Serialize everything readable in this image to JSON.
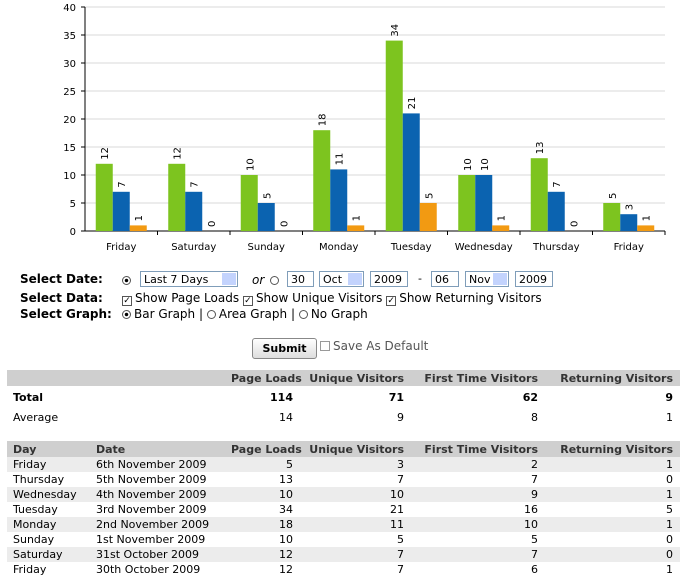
{
  "chart_data": {
    "type": "bar",
    "categories": [
      "Friday",
      "Saturday",
      "Sunday",
      "Monday",
      "Tuesday",
      "Wednesday",
      "Thursday",
      "Friday"
    ],
    "series": [
      {
        "color": "#7dc41f",
        "values": [
          12,
          12,
          10,
          18,
          34,
          10,
          13,
          5
        ]
      },
      {
        "color": "#0b63b0",
        "values": [
          7,
          7,
          5,
          11,
          21,
          10,
          7,
          3
        ]
      },
      {
        "color": "#f29a12",
        "values": [
          1,
          0,
          0,
          1,
          5,
          1,
          0,
          1
        ]
      }
    ],
    "ylim": [
      0,
      40
    ],
    "yticks": [
      0,
      5,
      10,
      15,
      20,
      25,
      30,
      35,
      40
    ],
    "grid": true
  },
  "form": {
    "date_label": "Select Date:",
    "range": "Last 7 Days",
    "or": "or",
    "from_day": "30",
    "from_month": "Oct",
    "from_year": "2009",
    "dash": "-",
    "to_day": "06",
    "to_month": "Nov",
    "to_year": "2009",
    "data_label": "Select Data:",
    "data_options": [
      "Show Page Loads",
      "Show Unique Visitors",
      "Show Returning Visitors"
    ],
    "graph_label": "Select Graph:",
    "graph_options": [
      "Bar Graph",
      "Area Graph",
      "No Graph"
    ],
    "separator": "|",
    "submit": "Submit",
    "save_default": "Save As Default"
  },
  "summary": {
    "columns": [
      "Page Loads",
      "Unique Visitors",
      "First Time Visitors",
      "Returning Visitors"
    ],
    "rows": [
      {
        "label": "Total",
        "values": [
          114,
          71,
          62,
          9
        ]
      },
      {
        "label": "Average",
        "values": [
          14,
          9,
          8,
          1
        ]
      }
    ]
  },
  "daily": {
    "columns": [
      "Day",
      "Date",
      "Page Loads",
      "Unique Visitors",
      "First Time Visitors",
      "Returning Visitors"
    ],
    "rows": [
      [
        "Friday",
        "6th November 2009",
        5,
        3,
        2,
        1
      ],
      [
        "Thursday",
        "5th November 2009",
        13,
        7,
        7,
        0
      ],
      [
        "Wednesday",
        "4th November 2009",
        10,
        10,
        9,
        1
      ],
      [
        "Tuesday",
        "3rd November 2009",
        34,
        21,
        16,
        5
      ],
      [
        "Monday",
        "2nd November 2009",
        18,
        11,
        10,
        1
      ],
      [
        "Sunday",
        "1st November 2009",
        10,
        5,
        5,
        0
      ],
      [
        "Saturday",
        "31st October 2009",
        12,
        7,
        7,
        0
      ],
      [
        "Friday",
        "30th October 2009",
        12,
        7,
        6,
        1
      ]
    ]
  }
}
